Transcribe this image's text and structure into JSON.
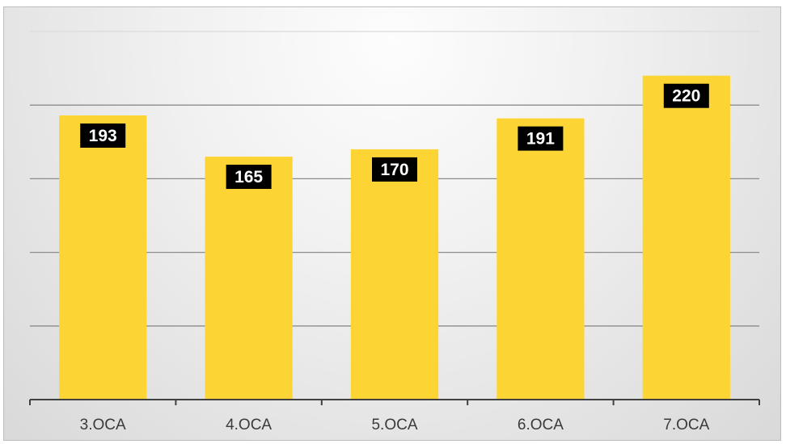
{
  "chart_data": {
    "type": "bar",
    "categories": [
      "3.OCA",
      "4.OCA",
      "5.OCA",
      "6.OCA",
      "7.OCA"
    ],
    "values": [
      193,
      165,
      170,
      191,
      220
    ],
    "title": "",
    "xlabel": "",
    "ylabel": "",
    "ylim": [
      0,
      250
    ],
    "y_gridline_step": 50,
    "grid": true,
    "legend": "none",
    "data_labels": true,
    "colors": {
      "bar": "#fcd535",
      "label_background": "#000000",
      "label_text": "#ffffff",
      "axis": "#404040",
      "gridline": "#8c8c8c"
    }
  }
}
